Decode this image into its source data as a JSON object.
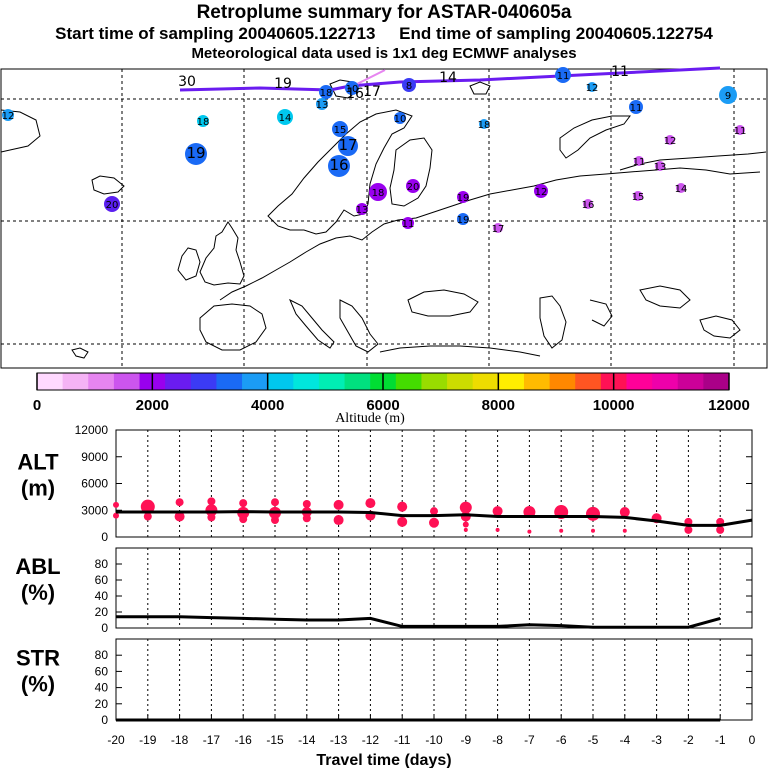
{
  "header": {
    "title": "Retroplume summary for ASTAR-040605a",
    "start_label": "Start time of sampling 20040605.122713",
    "end_label": "End time of sampling 20040605.122754",
    "met_label": "Meteorological data used is 1x1 deg ECMWF analyses"
  },
  "colorbar": {
    "title": "Altitude (m)",
    "ticks": [
      "0",
      "2000",
      "4000",
      "6000",
      "8000",
      "10000",
      "12000"
    ],
    "colors": [
      "#ffd9ff",
      "#f5b3f5",
      "#e685f0",
      "#cc55ee",
      "#9900ee",
      "#6a1cf0",
      "#3b3bf5",
      "#1a6af5",
      "#1b9cf5",
      "#00c8ee",
      "#00e6dd",
      "#00eeb4",
      "#00e07f",
      "#00dd33",
      "#44dd00",
      "#99dd00",
      "#ccdd00",
      "#eedd00",
      "#ffee00",
      "#ffbb00",
      "#ff8800",
      "#ff5522",
      "#ff1155",
      "#ff0099",
      "#ee00aa",
      "#cc0099",
      "#aa0088"
    ]
  },
  "map_labels": [
    {
      "t": "30",
      "c": "#5b1ff0",
      "big": false
    },
    {
      "t": "19",
      "c": "#5b1ff0",
      "big": false
    },
    {
      "t": "18",
      "c": "#1a6af5",
      "big": false
    },
    {
      "t": "10",
      "c": "#1a6af5",
      "big": false
    },
    {
      "t": "17",
      "c": "#1a6af5",
      "big": false
    },
    {
      "t": "16",
      "c": "#1a6af5",
      "big": false
    },
    {
      "t": "13",
      "c": "#1b9cf5",
      "big": false
    },
    {
      "t": "12",
      "c": "#1b9cf5",
      "big": false
    },
    {
      "t": "14",
      "c": "#00c8ee",
      "big": false
    },
    {
      "t": "18",
      "c": "#00c8ee",
      "big": false
    },
    {
      "t": "11",
      "c": "#1a6af5",
      "big": false
    },
    {
      "t": "9",
      "c": "#1b9cf5",
      "big": false
    },
    {
      "t": "8",
      "c": "#3b3bf5",
      "big": false
    },
    {
      "t": "12",
      "c": "#1b9cf5",
      "big": false
    },
    {
      "t": "11",
      "c": "#1a6af5",
      "big": false
    },
    {
      "t": "14",
      "c": "#1b9cf5",
      "big": false
    },
    {
      "t": "15",
      "c": "#1a6af5",
      "big": false
    },
    {
      "t": "10",
      "c": "#1a6af5",
      "big": false
    },
    {
      "t": "18",
      "c": "#1b9cf5",
      "big": false
    },
    {
      "t": "17",
      "c": "#1a6af5",
      "big": true
    },
    {
      "t": "19",
      "c": "#1a6af5",
      "big": true
    },
    {
      "t": "16",
      "c": "#1a6af5",
      "big": true
    },
    {
      "t": "20",
      "c": "#5b1ff0",
      "big": false
    },
    {
      "t": "18",
      "c": "#9900ee",
      "big": false
    },
    {
      "t": "20",
      "c": "#9900ee",
      "big": false
    },
    {
      "t": "19",
      "c": "#9900ee",
      "big": false
    },
    {
      "t": "13",
      "c": "#9900ee",
      "big": false
    },
    {
      "t": "12",
      "c": "#9900ee",
      "big": false
    },
    {
      "t": "11",
      "c": "#9900ee",
      "big": false
    },
    {
      "t": "16",
      "c": "#cc55ee",
      "big": false
    },
    {
      "t": "15",
      "c": "#cc55ee",
      "big": false
    },
    {
      "t": "14",
      "c": "#cc55ee",
      "big": false
    },
    {
      "t": "13",
      "c": "#cc55ee",
      "big": false
    },
    {
      "t": "12",
      "c": "#cc55ee",
      "big": false
    },
    {
      "t": "11",
      "c": "#cc55ee",
      "big": false
    },
    {
      "t": "11",
      "c": "#cc55ee",
      "big": false
    },
    {
      "t": "17",
      "c": "#cc55ee",
      "big": false
    },
    {
      "t": "19",
      "c": "#1a6af5",
      "big": false
    },
    {
      "t": "11",
      "c": "#1a6af5",
      "big": false
    }
  ],
  "chart_data": [
    {
      "type": "line",
      "title": "ALT (m)",
      "ylabel": "ALT\n(m)",
      "ylim": [
        0,
        12000
      ],
      "yticks": [
        0,
        3000,
        6000,
        9000,
        12000
      ],
      "x": [
        -20,
        -19,
        -18,
        -17,
        -16,
        -15,
        -14,
        -13,
        -12,
        -11,
        -10,
        -9,
        -8,
        -7,
        -6,
        -5,
        -4,
        -3,
        -2,
        -1,
        0
      ],
      "values": [
        2800,
        2800,
        2800,
        2800,
        2850,
        2800,
        2800,
        2800,
        2750,
        2400,
        2400,
        2500,
        2300,
        2300,
        2300,
        2300,
        2200,
        1800,
        1300,
        1300,
        1900
      ],
      "points": [
        {
          "x": -20,
          "y": 3600,
          "s": 3
        },
        {
          "x": -20,
          "y": 2400,
          "s": 3
        },
        {
          "x": -19,
          "y": 3400,
          "s": 7
        },
        {
          "x": -19,
          "y": 2300,
          "s": 4
        },
        {
          "x": -18,
          "y": 3900,
          "s": 4
        },
        {
          "x": -18,
          "y": 2300,
          "s": 5
        },
        {
          "x": -17,
          "y": 4000,
          "s": 4
        },
        {
          "x": -17,
          "y": 3000,
          "s": 6
        },
        {
          "x": -17,
          "y": 2200,
          "s": 4
        },
        {
          "x": -16,
          "y": 3800,
          "s": 4
        },
        {
          "x": -16,
          "y": 2700,
          "s": 6
        },
        {
          "x": -16,
          "y": 2000,
          "s": 4
        },
        {
          "x": -15,
          "y": 3900,
          "s": 4
        },
        {
          "x": -15,
          "y": 2700,
          "s": 6
        },
        {
          "x": -15,
          "y": 1900,
          "s": 4
        },
        {
          "x": -14,
          "y": 3700,
          "s": 4
        },
        {
          "x": -14,
          "y": 2800,
          "s": 5
        },
        {
          "x": -14,
          "y": 2100,
          "s": 4
        },
        {
          "x": -13,
          "y": 3600,
          "s": 5
        },
        {
          "x": -13,
          "y": 1900,
          "s": 5
        },
        {
          "x": -12,
          "y": 3800,
          "s": 5
        },
        {
          "x": -12,
          "y": 2400,
          "s": 5
        },
        {
          "x": -11,
          "y": 3400,
          "s": 5
        },
        {
          "x": -11,
          "y": 1700,
          "s": 5
        },
        {
          "x": -10,
          "y": 2900,
          "s": 4
        },
        {
          "x": -10,
          "y": 1600,
          "s": 5
        },
        {
          "x": -9,
          "y": 3300,
          "s": 6
        },
        {
          "x": -9,
          "y": 2300,
          "s": 5
        },
        {
          "x": -9,
          "y": 1400,
          "s": 3
        },
        {
          "x": -9,
          "y": 800,
          "s": 2
        },
        {
          "x": -8,
          "y": 2900,
          "s": 5
        },
        {
          "x": -8,
          "y": 800,
          "s": 2
        },
        {
          "x": -7,
          "y": 2800,
          "s": 6
        },
        {
          "x": -7,
          "y": 600,
          "s": 2
        },
        {
          "x": -6,
          "y": 2800,
          "s": 7
        },
        {
          "x": -6,
          "y": 700,
          "s": 2
        },
        {
          "x": -5,
          "y": 2600,
          "s": 7
        },
        {
          "x": -5,
          "y": 700,
          "s": 2
        },
        {
          "x": -4,
          "y": 2800,
          "s": 5
        },
        {
          "x": -4,
          "y": 700,
          "s": 2
        },
        {
          "x": -3,
          "y": 2100,
          "s": 5
        },
        {
          "x": -2,
          "y": 1700,
          "s": 4
        },
        {
          "x": -2,
          "y": 800,
          "s": 4
        },
        {
          "x": -1,
          "y": 1700,
          "s": 4
        },
        {
          "x": -1,
          "y": 800,
          "s": 4
        }
      ]
    },
    {
      "type": "line",
      "title": "ABL (%)",
      "ylabel": "ABL\n(%)",
      "ylim": [
        0,
        100
      ],
      "yticks": [
        0,
        20,
        40,
        60,
        80
      ],
      "x": [
        -20,
        -19,
        -18,
        -17,
        -16,
        -15,
        -14,
        -13,
        -12,
        -11,
        -10,
        -9,
        -8,
        -7,
        -6,
        -5,
        -4,
        -3,
        -2,
        -1
      ],
      "values": [
        14,
        14,
        14,
        13,
        12,
        11,
        10,
        10,
        12,
        2,
        2,
        2,
        2,
        4,
        3,
        1,
        1,
        1,
        1,
        12
      ]
    },
    {
      "type": "line",
      "title": "STR (%)",
      "ylabel": "STR\n(%)",
      "ylim": [
        0,
        100
      ],
      "yticks": [
        0,
        20,
        40,
        60,
        80
      ],
      "x": [
        -20,
        -19,
        -18,
        -17,
        -16,
        -15,
        -14,
        -13,
        -12,
        -11,
        -10,
        -9,
        -8,
        -7,
        -6,
        -5,
        -4,
        -3,
        -2,
        -1
      ],
      "values": [
        0,
        0,
        0,
        0,
        0,
        0,
        0,
        0,
        0,
        0,
        0,
        0,
        0,
        0,
        0,
        0,
        0,
        0,
        0,
        0
      ],
      "xlabel": "Travel time (days)",
      "xticks": [
        "-20",
        "-19",
        "-18",
        "-17",
        "-16",
        "-15",
        "-14",
        "-13",
        "-12",
        "-11",
        "-10",
        "-9",
        "-8",
        "-7",
        "-6",
        "-5",
        "-4",
        "-3",
        "-2",
        "-1",
        "0"
      ]
    }
  ]
}
